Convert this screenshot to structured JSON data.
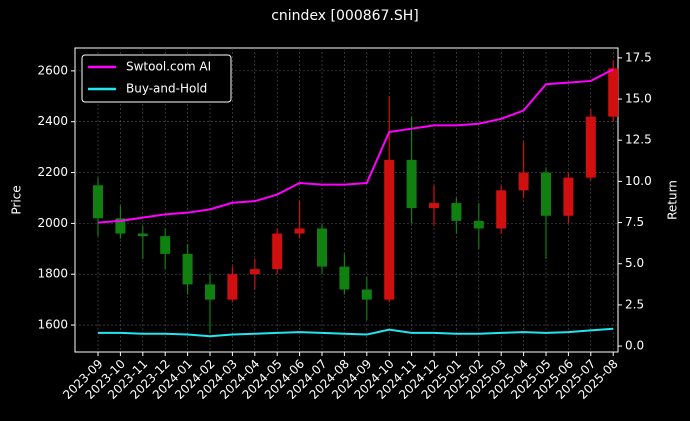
{
  "chart_data": {
    "type": "candlestick",
    "title": "cnindex [000867.SH]",
    "y_label": "Price",
    "y2_label": "Return",
    "categories": [
      "2023-09",
      "2023-10",
      "2023-11",
      "2023-12",
      "2024-01",
      "2024-02",
      "2024-03",
      "2024-04",
      "2024-05",
      "2024-06",
      "2024-07",
      "2024-08",
      "2024-09",
      "2024-10",
      "2024-11",
      "2024-12",
      "2025-01",
      "2025-02",
      "2025-03",
      "2025-04",
      "2025-05",
      "2025-06",
      "2025-07",
      "2025-08"
    ],
    "open": [
      2150,
      2020,
      1960,
      1950,
      1880,
      1760,
      1700,
      1800,
      1820,
      1960,
      1980,
      1830,
      1740,
      1700,
      2250,
      2060,
      2080,
      2010,
      1980,
      2130,
      2200,
      2030,
      2180,
      2420
    ],
    "high": [
      2180,
      2070,
      1990,
      1980,
      1920,
      1800,
      1830,
      1860,
      1980,
      2090,
      2000,
      1880,
      1790,
      2500,
      2420,
      2150,
      2100,
      2080,
      2150,
      2320,
      2220,
      2200,
      2450,
      2640
    ],
    "low": [
      1950,
      1940,
      1860,
      1820,
      1720,
      1570,
      1690,
      1740,
      1800,
      1940,
      1800,
      1720,
      1620,
      1690,
      2000,
      1990,
      1960,
      1900,
      1960,
      2100,
      1860,
      2000,
      2170,
      2400
    ],
    "close": [
      2020,
      1960,
      1950,
      1880,
      1760,
      1700,
      1800,
      1820,
      1960,
      1980,
      1830,
      1740,
      1700,
      2250,
      2060,
      2080,
      2010,
      1980,
      2130,
      2200,
      2030,
      2180,
      2420,
      2610
    ],
    "up_color": "#d01010",
    "down_color": "#108010",
    "series": [
      {
        "name": "Swtool.com AI",
        "color": "#ff00ff",
        "axis": "y2",
        "values": [
          7.5,
          7.6,
          7.8,
          8.0,
          8.1,
          8.3,
          8.7,
          8.8,
          9.2,
          9.9,
          9.8,
          9.8,
          9.9,
          13.0,
          13.2,
          13.4,
          13.4,
          13.5,
          13.8,
          14.3,
          15.9,
          16.0,
          16.1,
          16.8
        ]
      },
      {
        "name": "Buy-and-Hold",
        "color": "#22e5f0",
        "axis": "y2",
        "values": [
          0.8,
          0.8,
          0.75,
          0.75,
          0.7,
          0.6,
          0.7,
          0.75,
          0.8,
          0.85,
          0.8,
          0.75,
          0.7,
          1.0,
          0.8,
          0.8,
          0.75,
          0.75,
          0.8,
          0.85,
          0.8,
          0.85,
          0.95,
          1.05
        ]
      }
    ],
    "ylim": [
      1494,
      2690
    ],
    "yticks": [
      1600,
      1800,
      2000,
      2200,
      2400,
      2600
    ],
    "y2lim": [
      -0.36,
      18.1
    ],
    "y2ticks": [
      {
        "value": 0,
        "label": "0.0"
      },
      2.5,
      {
        "value": 5,
        "label": "5.0"
      },
      7.5,
      {
        "value": 10,
        "label": "10.0"
      },
      12.5,
      {
        "value": 15,
        "label": "15.0"
      },
      17.5
    ],
    "grid": true,
    "legend": "upper left"
  }
}
